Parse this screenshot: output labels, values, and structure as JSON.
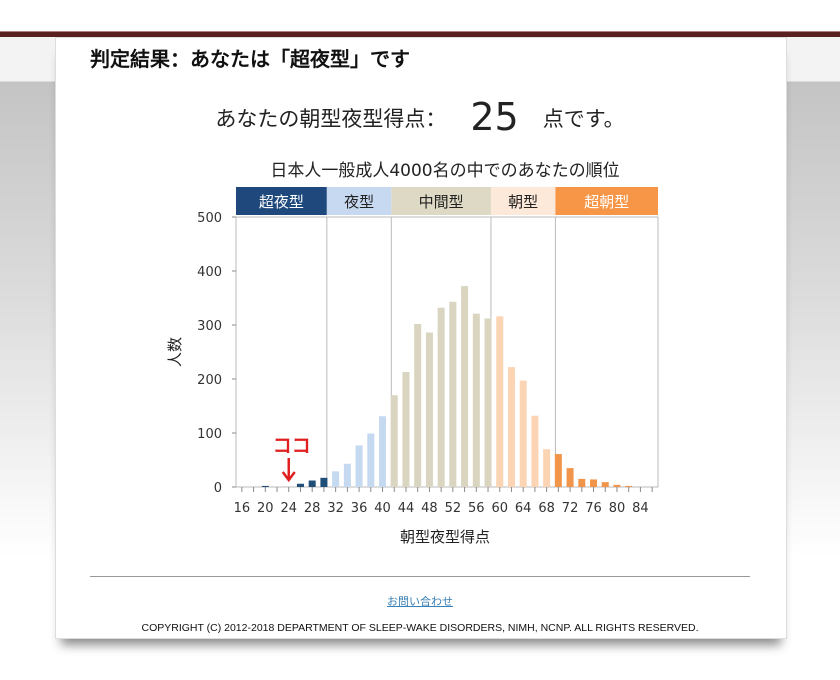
{
  "result": {
    "verdict": "判定結果：あなたは「超夜型」です",
    "score_prefix": "あなたの朝型夜型得点：",
    "score": "25",
    "score_suffix": "点です。"
  },
  "chart_data": {
    "type": "bar",
    "title": "日本人一般成人4000名の中でのあなたの順位",
    "xlabel": "朝型夜型得点",
    "ylabel": "人数",
    "ylim": [
      0,
      500
    ],
    "xlim": [
      15,
      87
    ],
    "yticks": [
      "0",
      "100",
      "200",
      "300",
      "400",
      "500"
    ],
    "xticks": [
      "16",
      "20",
      "24",
      "28",
      "32",
      "36",
      "40",
      "44",
      "48",
      "52",
      "56",
      "60",
      "64",
      "68",
      "72",
      "76",
      "80",
      "84"
    ],
    "bands": [
      {
        "label": "超夜型",
        "from": 15,
        "to": 30.5,
        "color": "#1f497d",
        "text_color": "#ffffff",
        "bar_color": "#1f4e79"
      },
      {
        "label": "夜型",
        "from": 30.5,
        "to": 41.5,
        "color": "#c6d9f1",
        "text_color": "#222222",
        "bar_color": "#c5d9f1"
      },
      {
        "label": "中間型",
        "from": 41.5,
        "to": 58.5,
        "color": "#ddd9c4",
        "text_color": "#222222",
        "bar_color": "#d9d5c0"
      },
      {
        "label": "朝型",
        "from": 58.5,
        "to": 69.5,
        "color": "#fde9d9",
        "text_color": "#222222",
        "bar_color": "#fbd4b4"
      },
      {
        "label": "超朝型",
        "from": 69.5,
        "to": 87,
        "color": "#f79646",
        "text_color": "#ffffff",
        "bar_color": "#f0954a"
      }
    ],
    "x": [
      20,
      22,
      24,
      26,
      28,
      30,
      32,
      34,
      36,
      38,
      40,
      42,
      44,
      46,
      48,
      50,
      52,
      54,
      56,
      58,
      60,
      62,
      64,
      66,
      68,
      70,
      72,
      74,
      76,
      78,
      80,
      82
    ],
    "values": [
      2,
      0,
      0,
      6,
      12,
      17,
      29,
      43,
      77,
      99,
      131,
      170,
      213,
      302,
      286,
      332,
      343,
      372,
      321,
      312,
      316,
      222,
      197,
      132,
      70,
      61,
      35,
      15,
      14,
      9,
      4,
      2
    ],
    "marker": {
      "label": "ココ",
      "x": 24,
      "color": "#e02020"
    }
  },
  "footer": {
    "contact_link": "お問い合わせ",
    "copyright": "COPYRIGHT (C) 2012-2018 DEPARTMENT OF SLEEP-WAKE DISORDERS, NIMH, NCNP. ALL RIGHTS RESERVED."
  }
}
